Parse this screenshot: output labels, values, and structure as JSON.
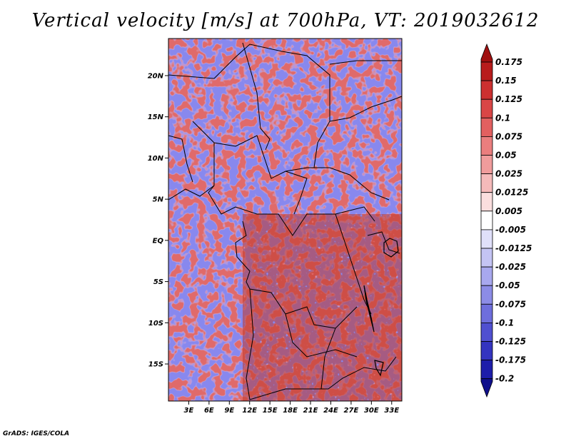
{
  "title": "Vertical velocity [m/s] at 700hPa, VT: 2019032612",
  "map": {
    "lat_ticks": [
      "20N",
      "15N",
      "10N",
      "5N",
      "EQ",
      "5S",
      "10S",
      "15S"
    ],
    "lat_values": [
      20,
      15,
      10,
      5,
      0,
      -5,
      -10,
      -15
    ],
    "lon_ticks": [
      "3E",
      "6E",
      "9E",
      "12E",
      "15E",
      "18E",
      "21E",
      "24E",
      "27E",
      "30E",
      "33E"
    ],
    "lon_values": [
      3,
      6,
      9,
      12,
      15,
      18,
      21,
      24,
      27,
      30,
      33
    ],
    "extent": {
      "lon_min": 0,
      "lon_max": 34.5,
      "lat_min": -19.5,
      "lat_max": 24.5
    }
  },
  "colorbar": {
    "labels": [
      "0.175",
      "0.15",
      "0.125",
      "0.1",
      "0.075",
      "0.05",
      "0.025",
      "0.0125",
      "0.005",
      "-0.005",
      "-0.0125",
      "-0.025",
      "-0.05",
      "-0.075",
      "-0.1",
      "-0.125",
      "-0.175",
      "-0.2"
    ],
    "colors": [
      "#a01010",
      "#b81c1c",
      "#cc3030",
      "#d94646",
      "#e26060",
      "#ea7e7e",
      "#f09c9c",
      "#f5baba",
      "#fadede",
      "#ffffff",
      "#e0e0fa",
      "#c4c4f4",
      "#a8a8ee",
      "#8c8ce6",
      "#6e6edc",
      "#5050d0",
      "#3434c0",
      "#1e1eaa",
      "#10108c"
    ]
  },
  "footer": "GrADS: IGES/COLA"
}
